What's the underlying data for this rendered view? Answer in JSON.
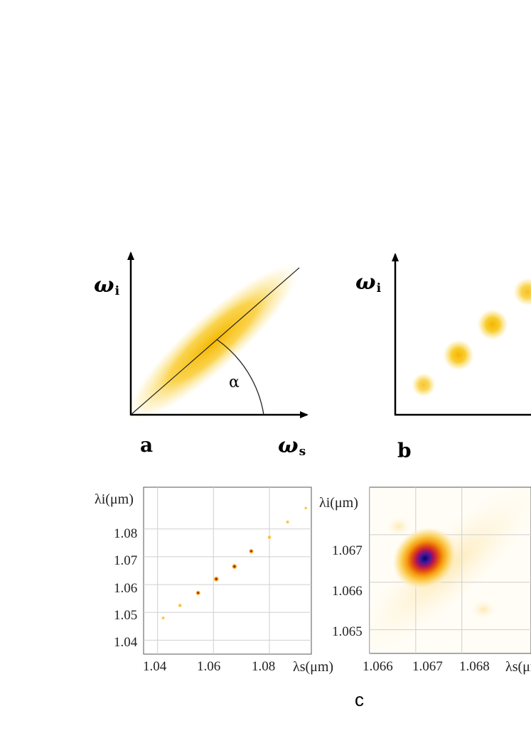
{
  "panel_a": {
    "letter": "a",
    "y_axis": "ω",
    "y_sub": "i",
    "x_axis": "ω",
    "x_sub": "s",
    "angle": "α"
  },
  "panel_b": {
    "letter": "b",
    "y_axis": "ω",
    "y_sub": "i"
  },
  "panel_c": {
    "letter": "c"
  },
  "chart_data": [
    {
      "type": "scatter",
      "xlabel": "λs(μm)",
      "ylabel": "λi(μm)",
      "xlim": [
        1.035,
        1.095
      ],
      "ylim": [
        1.035,
        1.095
      ],
      "x_ticks": [
        "1.04",
        "1.06",
        "1.08"
      ],
      "y_ticks": [
        "1.04",
        "1.05",
        "1.06",
        "1.07",
        "1.08"
      ],
      "grid": true,
      "points": [
        {
          "x": 1.042,
          "y": 1.048,
          "intensity": 0.25
        },
        {
          "x": 1.048,
          "y": 1.0525,
          "intensity": 0.45
        },
        {
          "x": 1.0545,
          "y": 1.057,
          "intensity": 0.7
        },
        {
          "x": 1.061,
          "y": 1.062,
          "intensity": 0.9
        },
        {
          "x": 1.0675,
          "y": 1.0665,
          "intensity": 0.9
        },
        {
          "x": 1.0735,
          "y": 1.072,
          "intensity": 0.7
        },
        {
          "x": 1.08,
          "y": 1.077,
          "intensity": 0.45
        },
        {
          "x": 1.0865,
          "y": 1.0825,
          "intensity": 0.3
        },
        {
          "x": 1.093,
          "y": 1.0875,
          "intensity": 0.15
        }
      ]
    },
    {
      "type": "heatmap",
      "xlabel": "λs(μm)",
      "ylabel": "λi(μm)",
      "xlim": [
        1.066,
        1.0695
      ],
      "ylim": [
        1.0645,
        1.068
      ],
      "x_ticks": [
        "1.066",
        "1.067",
        "1.068"
      ],
      "y_ticks": [
        "1.065",
        "1.066",
        "1.067"
      ],
      "grid": true,
      "peak": {
        "x": 1.0672,
        "y": 1.0665
      }
    }
  ]
}
